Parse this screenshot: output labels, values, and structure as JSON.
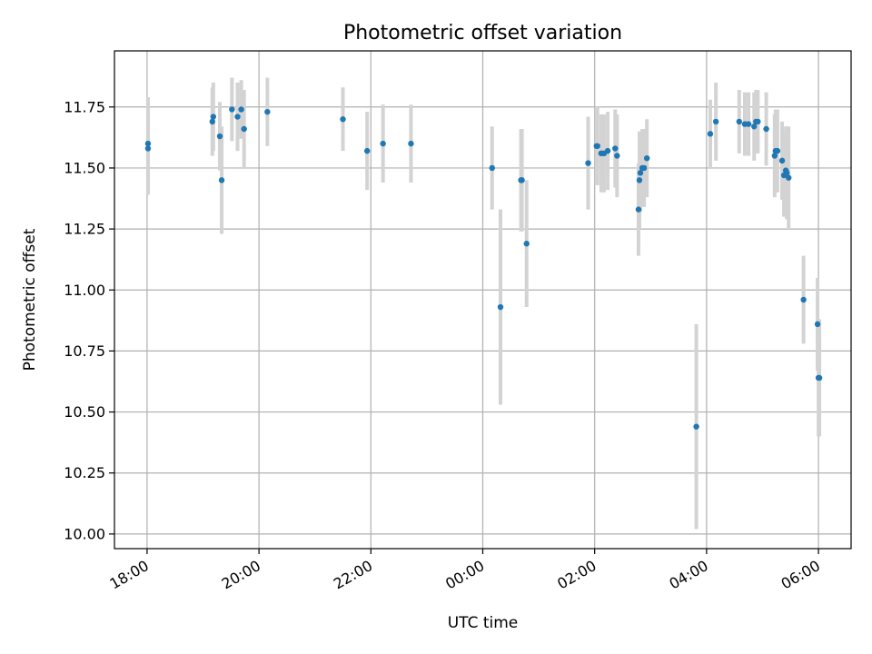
{
  "chart_data": {
    "type": "scatter",
    "title": "Photometric offset variation",
    "xlabel": "UTC time",
    "ylabel": "Photometric offset",
    "grid": true,
    "xlim": [
      "17:25",
      "06:35"
    ],
    "ylim": [
      9.94,
      11.98
    ],
    "x_ticks": [
      "18:00",
      "20:00",
      "22:00",
      "00:00",
      "02:00",
      "04:00",
      "06:00"
    ],
    "y_ticks": [
      "10.00",
      "10.25",
      "10.50",
      "10.75",
      "11.00",
      "11.25",
      "11.50",
      "11.75"
    ],
    "colors": {
      "points": "#1f77b4",
      "errorbars": "#d3d3d3",
      "grid": "#b0b0b0",
      "frame": "#000000"
    },
    "series": [
      {
        "x": [
          "18:01",
          "18:01",
          "19:10",
          "19:11",
          "19:18",
          "19:20",
          "19:31",
          "19:37",
          "19:41",
          "19:44",
          "20:09",
          "21:30",
          "21:56",
          "22:13",
          "22:43",
          "00:10",
          "00:19",
          "00:41",
          "00:42",
          "00:47",
          "01:53",
          "02:02",
          "02:03",
          "02:07",
          "02:10",
          "02:14",
          "02:22",
          "02:24",
          "02:47",
          "02:48",
          "02:49",
          "02:51",
          "02:53",
          "02:56",
          "03:49",
          "04:04",
          "04:10",
          "04:35",
          "04:41",
          "04:45",
          "04:51",
          "04:53",
          "04:55",
          "05:04",
          "05:13",
          "05:14",
          "05:16",
          "05:21",
          "05:23",
          "05:25",
          "05:26",
          "05:28",
          "05:44",
          "05:59",
          "06:00",
          "06:01"
        ],
        "y": [
          11.58,
          11.6,
          11.69,
          11.71,
          11.63,
          11.45,
          11.74,
          11.71,
          11.74,
          11.66,
          11.73,
          11.7,
          11.57,
          11.6,
          11.6,
          11.5,
          10.93,
          11.45,
          11.45,
          11.19,
          11.52,
          11.59,
          11.59,
          11.56,
          11.56,
          11.57,
          11.58,
          11.55,
          11.33,
          11.45,
          11.48,
          11.5,
          11.5,
          11.54,
          10.44,
          11.64,
          11.69,
          11.69,
          11.68,
          11.68,
          11.67,
          11.69,
          11.69,
          11.66,
          11.55,
          11.57,
          11.57,
          11.53,
          11.47,
          11.49,
          11.48,
          11.46,
          10.96,
          10.86,
          10.64,
          10.64
        ],
        "err": [
          0.19,
          0.19,
          0.14,
          0.14,
          0.14,
          0.22,
          0.13,
          0.14,
          0.12,
          0.16,
          0.14,
          0.13,
          0.16,
          0.16,
          0.16,
          0.17,
          0.4,
          0.21,
          0.21,
          0.26,
          0.19,
          0.16,
          0.16,
          0.16,
          0.16,
          0.16,
          0.16,
          0.17,
          0.19,
          0.2,
          0.16,
          0.16,
          0.16,
          0.16,
          0.42,
          0.14,
          0.16,
          0.13,
          0.13,
          0.13,
          0.14,
          0.13,
          0.13,
          0.15,
          0.17,
          0.17,
          0.17,
          0.16,
          0.17,
          0.18,
          0.19,
          0.21,
          0.18,
          0.19,
          0.24,
          0.24
        ]
      }
    ]
  }
}
